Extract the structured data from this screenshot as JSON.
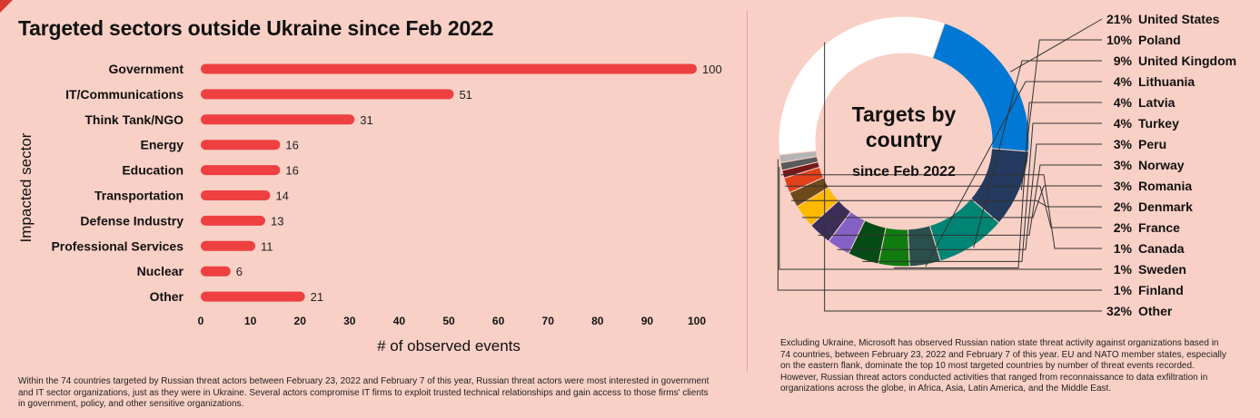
{
  "title": "Targeted sectors outside Ukraine since Feb 2022",
  "chart_data": [
    {
      "type": "bar",
      "orientation": "horizontal",
      "title": "Targeted sectors outside Ukraine since Feb 2022",
      "xlabel": "# of observed events",
      "ylabel": "Impacted sector",
      "categories": [
        "Government",
        "IT/Communications",
        "Think Tank/NGO",
        "Energy",
        "Education",
        "Transportation",
        "Defense Industry",
        "Professional Services",
        "Nuclear",
        "Other"
      ],
      "values": [
        100,
        51,
        31,
        16,
        16,
        14,
        13,
        11,
        6,
        21
      ],
      "xlim": [
        0,
        100
      ],
      "xticks": [
        0,
        10,
        20,
        30,
        40,
        50,
        60,
        70,
        80,
        90,
        100
      ],
      "bar_color": "#ee4040"
    },
    {
      "type": "pie",
      "style": "donut",
      "title": "Targets by country",
      "subtitle": "since Feb 2022",
      "labels": [
        "United States",
        "Poland",
        "United Kingdom",
        "Lithuania",
        "Latvia",
        "Turkey",
        "Peru",
        "Norway",
        "Romania",
        "Denmark",
        "France",
        "Canada",
        "Sweden",
        "Finland",
        "Other"
      ],
      "values": [
        21,
        10,
        9,
        4,
        4,
        4,
        3,
        3,
        3,
        2,
        2,
        1,
        1,
        1,
        32
      ],
      "value_labels": [
        "21%",
        "10%",
        "9%",
        "4%",
        "4%",
        "4%",
        "3%",
        "3%",
        "3%",
        "2%",
        "2%",
        "1%",
        "1%",
        "1%",
        "32%"
      ],
      "colors": [
        "#0078d4",
        "#243a5e",
        "#008575",
        "#2a4f4d",
        "#107c10",
        "#054b16",
        "#8661c5",
        "#3b2e58",
        "#ffb900",
        "#6e4a1a",
        "#e0401a",
        "#75191b",
        "#5a5a5a",
        "#b4b4b4",
        "#ffffff"
      ]
    }
  ],
  "captions": {
    "left": "Within the 74 countries targeted by Russian threat actors between February 23, 2022 and February 7 of this year, Russian threat actors were most interested in government and IT sector organizations, just as they were in Ukraine. Several actors compromise IT firms to exploit trusted technical relationships and gain access to those firms' clients in government, policy, and other sensitive organizations.",
    "right": "Excluding Ukraine, Microsoft has observed Russian nation state threat activity against organizations based in 74 countries, between February 23, 2022 and February 7 of this year. EU and NATO member states, especially on the eastern flank, dominate the top 10 most targeted countries by number of threat events recorded. However, Russian threat actors conducted activities that ranged from reconnaissance to data exfiltration in organizations across the globe, in Africa, Asia, Latin America, and the Middle East."
  }
}
